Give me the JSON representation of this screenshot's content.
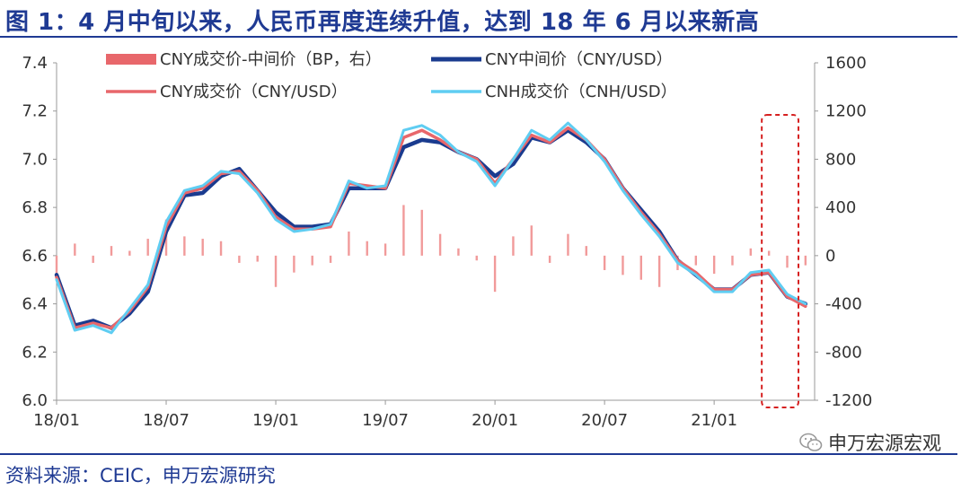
{
  "title": "图 1：4 月中旬以来，人民币再度连续升值，达到 18 年 6 月以来新高",
  "source": "资料来源：CEIC，申万宏源研究",
  "watermark": "申万宏源宏观",
  "colors": {
    "title_blue": "#1f3a93",
    "cny_mid": "#1a3b8f",
    "cny_trade": "#e8676b",
    "cnh_trade": "#5fcdf2",
    "spread": "#f19a9a",
    "highlight": "#d62020"
  },
  "chart_data": {
    "type": "line",
    "title": "",
    "xlabel": "",
    "ylabel": "",
    "x_ticks": [
      "18/01",
      "18/07",
      "19/01",
      "19/07",
      "20/01",
      "20/07",
      "21/01"
    ],
    "x_range": [
      "2018-01",
      "2021-06"
    ],
    "ylim_left": [
      6.0,
      7.4
    ],
    "yticks_left": [
      "6.0",
      "6.2",
      "6.4",
      "6.6",
      "6.8",
      "7.0",
      "7.2",
      "7.4"
    ],
    "ylim_right": [
      -1200,
      1600
    ],
    "yticks_right": [
      "-1200",
      "-800",
      "-400",
      "0",
      "400",
      "800",
      "1200",
      "1600"
    ],
    "grid": false,
    "legend": "top",
    "legend_entries": [
      {
        "label": "CNY成交价-中间价（BP，右）",
        "kind": "bar"
      },
      {
        "label": "CNY中间价（CNY/USD）",
        "kind": "line"
      },
      {
        "label": "CNY成交价（CNY/USD）",
        "kind": "line"
      },
      {
        "label": "CNH成交价（CNH/USD）",
        "kind": "line"
      }
    ],
    "series": [
      {
        "name": "CNY中间价（CNY/USD）",
        "axis": "left",
        "points": [
          [
            "2018-01",
            6.52
          ],
          [
            "2018-02",
            6.31
          ],
          [
            "2018-03",
            6.33
          ],
          [
            "2018-04",
            6.3
          ],
          [
            "2018-05",
            6.36
          ],
          [
            "2018-06",
            6.45
          ],
          [
            "2018-07",
            6.7
          ],
          [
            "2018-08",
            6.85
          ],
          [
            "2018-09",
            6.86
          ],
          [
            "2018-10",
            6.93
          ],
          [
            "2018-11",
            6.96
          ],
          [
            "2018-12",
            6.87
          ],
          [
            "2019-01",
            6.78
          ],
          [
            "2019-02",
            6.72
          ],
          [
            "2019-03",
            6.72
          ],
          [
            "2019-04",
            6.73
          ],
          [
            "2019-05",
            6.88
          ],
          [
            "2019-06",
            6.88
          ],
          [
            "2019-07",
            6.88
          ],
          [
            "2019-08",
            7.05
          ],
          [
            "2019-09",
            7.08
          ],
          [
            "2019-10",
            7.07
          ],
          [
            "2019-11",
            7.03
          ],
          [
            "2019-12",
            7.0
          ],
          [
            "2020-01",
            6.93
          ],
          [
            "2020-02",
            6.98
          ],
          [
            "2020-03",
            7.09
          ],
          [
            "2020-04",
            7.07
          ],
          [
            "2020-05",
            7.12
          ],
          [
            "2020-06",
            7.07
          ],
          [
            "2020-07",
            7.0
          ],
          [
            "2020-08",
            6.88
          ],
          [
            "2020-09",
            6.79
          ],
          [
            "2020-10",
            6.7
          ],
          [
            "2020-11",
            6.58
          ],
          [
            "2020-12",
            6.52
          ],
          [
            "2021-01",
            6.46
          ],
          [
            "2021-02",
            6.46
          ],
          [
            "2021-03",
            6.52
          ],
          [
            "2021-04",
            6.53
          ],
          [
            "2021-05",
            6.43
          ],
          [
            "2021-06",
            6.4
          ]
        ]
      },
      {
        "name": "CNY成交价（CNY/USD）",
        "axis": "left",
        "points": [
          [
            "2018-01",
            6.51
          ],
          [
            "2018-02",
            6.3
          ],
          [
            "2018-03",
            6.32
          ],
          [
            "2018-04",
            6.3
          ],
          [
            "2018-05",
            6.37
          ],
          [
            "2018-06",
            6.47
          ],
          [
            "2018-07",
            6.72
          ],
          [
            "2018-08",
            6.86
          ],
          [
            "2018-09",
            6.88
          ],
          [
            "2018-10",
            6.94
          ],
          [
            "2018-11",
            6.95
          ],
          [
            "2018-12",
            6.87
          ],
          [
            "2019-01",
            6.76
          ],
          [
            "2019-02",
            6.71
          ],
          [
            "2019-03",
            6.71
          ],
          [
            "2019-04",
            6.72
          ],
          [
            "2019-05",
            6.9
          ],
          [
            "2019-06",
            6.89
          ],
          [
            "2019-07",
            6.88
          ],
          [
            "2019-08",
            7.09
          ],
          [
            "2019-09",
            7.12
          ],
          [
            "2019-10",
            7.08
          ],
          [
            "2019-11",
            7.03
          ],
          [
            "2019-12",
            7.0
          ],
          [
            "2020-01",
            6.9
          ],
          [
            "2020-02",
            7.0
          ],
          [
            "2020-03",
            7.1
          ],
          [
            "2020-04",
            7.07
          ],
          [
            "2020-05",
            7.13
          ],
          [
            "2020-06",
            7.08
          ],
          [
            "2020-07",
            7.0
          ],
          [
            "2020-08",
            6.88
          ],
          [
            "2020-09",
            6.78
          ],
          [
            "2020-10",
            6.69
          ],
          [
            "2020-11",
            6.58
          ],
          [
            "2020-12",
            6.53
          ],
          [
            "2021-01",
            6.46
          ],
          [
            "2021-02",
            6.46
          ],
          [
            "2021-03",
            6.52
          ],
          [
            "2021-04",
            6.53
          ],
          [
            "2021-05",
            6.43
          ],
          [
            "2021-06",
            6.39
          ]
        ]
      },
      {
        "name": "CNH成交价（CNH/USD）",
        "axis": "left",
        "points": [
          [
            "2018-01",
            6.5
          ],
          [
            "2018-02",
            6.29
          ],
          [
            "2018-03",
            6.31
          ],
          [
            "2018-04",
            6.28
          ],
          [
            "2018-05",
            6.38
          ],
          [
            "2018-06",
            6.48
          ],
          [
            "2018-07",
            6.74
          ],
          [
            "2018-08",
            6.87
          ],
          [
            "2018-09",
            6.89
          ],
          [
            "2018-10",
            6.95
          ],
          [
            "2018-11",
            6.94
          ],
          [
            "2018-12",
            6.86
          ],
          [
            "2019-01",
            6.75
          ],
          [
            "2019-02",
            6.7
          ],
          [
            "2019-03",
            6.71
          ],
          [
            "2019-04",
            6.73
          ],
          [
            "2019-05",
            6.91
          ],
          [
            "2019-06",
            6.88
          ],
          [
            "2019-07",
            6.89
          ],
          [
            "2019-08",
            7.12
          ],
          [
            "2019-09",
            7.14
          ],
          [
            "2019-10",
            7.1
          ],
          [
            "2019-11",
            7.03
          ],
          [
            "2019-12",
            6.99
          ],
          [
            "2020-01",
            6.89
          ],
          [
            "2020-02",
            7.0
          ],
          [
            "2020-03",
            7.12
          ],
          [
            "2020-04",
            7.08
          ],
          [
            "2020-05",
            7.15
          ],
          [
            "2020-06",
            7.08
          ],
          [
            "2020-07",
            6.99
          ],
          [
            "2020-08",
            6.87
          ],
          [
            "2020-09",
            6.77
          ],
          [
            "2020-10",
            6.68
          ],
          [
            "2020-11",
            6.57
          ],
          [
            "2020-12",
            6.52
          ],
          [
            "2021-01",
            6.45
          ],
          [
            "2021-02",
            6.45
          ],
          [
            "2021-03",
            6.53
          ],
          [
            "2021-04",
            6.54
          ],
          [
            "2021-05",
            6.44
          ],
          [
            "2021-06",
            6.4
          ]
        ]
      },
      {
        "name": "CNY成交价-中间价（BP，右）",
        "axis": "right",
        "type": "bar",
        "points": [
          [
            "2018-01",
            -150
          ],
          [
            "2018-02",
            100
          ],
          [
            "2018-03",
            -60
          ],
          [
            "2018-04",
            80
          ],
          [
            "2018-05",
            40
          ],
          [
            "2018-06",
            140
          ],
          [
            "2018-07",
            300
          ],
          [
            "2018-08",
            160
          ],
          [
            "2018-09",
            140
          ],
          [
            "2018-10",
            120
          ],
          [
            "2018-11",
            -60
          ],
          [
            "2018-12",
            -50
          ],
          [
            "2019-01",
            -260
          ],
          [
            "2019-02",
            -140
          ],
          [
            "2019-03",
            -80
          ],
          [
            "2019-04",
            -60
          ],
          [
            "2019-05",
            200
          ],
          [
            "2019-06",
            120
          ],
          [
            "2019-07",
            100
          ],
          [
            "2019-08",
            420
          ],
          [
            "2019-09",
            380
          ],
          [
            "2019-10",
            180
          ],
          [
            "2019-11",
            60
          ],
          [
            "2019-12",
            -40
          ],
          [
            "2020-01",
            -300
          ],
          [
            "2020-02",
            160
          ],
          [
            "2020-03",
            250
          ],
          [
            "2020-04",
            -60
          ],
          [
            "2020-05",
            180
          ],
          [
            "2020-06",
            80
          ],
          [
            "2020-07",
            -120
          ],
          [
            "2020-08",
            -160
          ],
          [
            "2020-09",
            -200
          ],
          [
            "2020-10",
            -260
          ],
          [
            "2020-11",
            -120
          ],
          [
            "2020-12",
            -80
          ],
          [
            "2021-01",
            -150
          ],
          [
            "2021-02",
            -80
          ],
          [
            "2021-03",
            60
          ],
          [
            "2021-04",
            40
          ],
          [
            "2021-05",
            -100
          ],
          [
            "2021-06",
            -80
          ]
        ]
      }
    ],
    "annotations": [
      {
        "type": "dashed-box",
        "from": "2021-04",
        "to": "2021-06"
      }
    ]
  }
}
